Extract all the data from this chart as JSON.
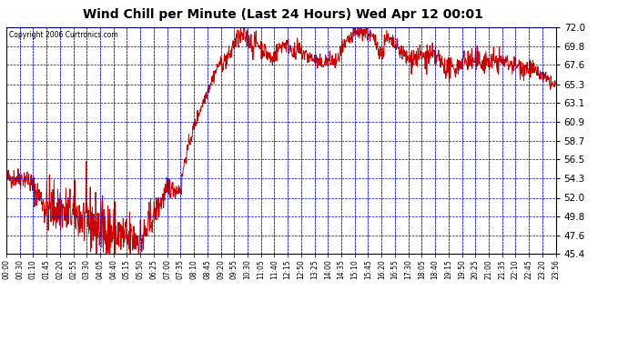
{
  "title": "Wind Chill per Minute (Last 24 Hours) Wed Apr 12 00:01",
  "copyright": "Copyright 2006 Curtronics.com",
  "bg_color": "#ffffff",
  "plot_bg_color": "#ffffff",
  "line_color": "#cc0000",
  "grid_color": "#0000cc",
  "ylim": [
    45.4,
    72.0
  ],
  "yticks": [
    45.4,
    47.6,
    49.8,
    52.0,
    54.3,
    56.5,
    58.7,
    60.9,
    63.1,
    65.3,
    67.6,
    69.8,
    72.0
  ],
  "xtick_labels": [
    "00:00",
    "00:30",
    "01:10",
    "01:45",
    "02:20",
    "02:55",
    "03:30",
    "04:05",
    "04:40",
    "05:15",
    "05:50",
    "06:25",
    "07:00",
    "07:35",
    "08:10",
    "08:45",
    "09:20",
    "09:55",
    "10:30",
    "11:05",
    "11:40",
    "12:15",
    "12:50",
    "13:25",
    "14:00",
    "14:35",
    "15:10",
    "15:45",
    "16:20",
    "16:55",
    "17:30",
    "18:05",
    "18:40",
    "19:15",
    "19:50",
    "20:25",
    "21:00",
    "21:35",
    "22:10",
    "22:45",
    "23:20",
    "23:56"
  ]
}
